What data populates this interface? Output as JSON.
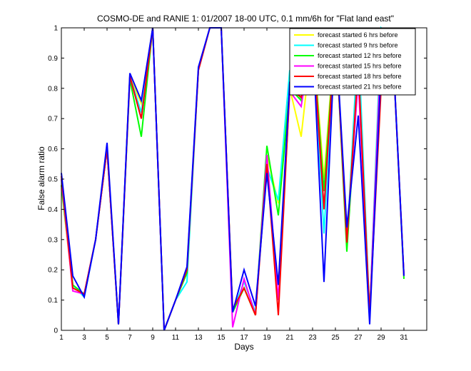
{
  "chart_data": {
    "type": "line",
    "title": "COSMO-DE and RANIE 1: 01/2007 18-00 UTC, 0.1 mm/6h for \"Flat land east\"",
    "xlabel": "Days",
    "ylabel": "False alarm ratio",
    "xlim": [
      1,
      33
    ],
    "ylim": [
      0,
      1
    ],
    "xticks": [
      1,
      3,
      5,
      7,
      9,
      11,
      13,
      15,
      17,
      19,
      21,
      23,
      25,
      27,
      29,
      31
    ],
    "yticks": [
      0,
      0.1,
      0.2,
      0.3,
      0.4,
      0.5,
      0.6,
      0.7,
      0.8,
      0.9,
      1
    ],
    "ytick_labels": [
      "0",
      "0.1",
      "0.2",
      "0.3",
      "0.4",
      "0.5",
      "0.6",
      "0.7",
      "0.8",
      "0.9",
      "1"
    ],
    "grid": false,
    "legend_position": "top-right",
    "x": [
      1,
      2,
      3,
      4,
      5,
      6,
      7,
      8,
      9,
      10,
      11,
      12,
      13,
      14,
      15,
      16,
      17,
      18,
      19,
      20,
      21,
      22,
      23,
      24,
      25,
      26,
      27,
      28,
      29,
      30,
      31
    ],
    "series": [
      {
        "name": "forecast started 6 hrs before",
        "color": "#ffff00",
        "values": [
          0.47,
          0.14,
          0.12,
          0.3,
          0.6,
          0.02,
          0.84,
          0.75,
          1.0,
          0.0,
          0.1,
          0.19,
          0.86,
          1.0,
          1.0,
          0.06,
          0.14,
          0.05,
          0.58,
          0.42,
          0.8,
          0.64,
          0.98,
          0.5,
          1.0,
          0.29,
          0.85,
          0.05,
          0.95,
          0.95,
          0.18
        ]
      },
      {
        "name": "forecast started 9 hrs before",
        "color": "#00ffff",
        "values": [
          0.48,
          0.15,
          0.11,
          0.3,
          0.6,
          0.02,
          0.84,
          0.72,
          1.0,
          0.0,
          0.1,
          0.16,
          0.86,
          1.0,
          1.0,
          0.06,
          0.16,
          0.06,
          0.54,
          0.43,
          0.86,
          0.76,
          0.98,
          0.32,
          1.0,
          0.28,
          0.97,
          0.05,
          1.0,
          0.96,
          0.18
        ]
      },
      {
        "name": "forecast started 12 hrs before",
        "color": "#00ff00",
        "values": [
          0.48,
          0.15,
          0.12,
          0.3,
          0.6,
          0.02,
          0.83,
          0.64,
          1.0,
          0.0,
          0.1,
          0.19,
          0.86,
          1.0,
          1.0,
          0.06,
          0.14,
          0.05,
          0.61,
          0.38,
          0.8,
          0.76,
          0.98,
          0.46,
          1.0,
          0.26,
          0.85,
          0.05,
          0.95,
          0.95,
          0.17
        ]
      },
      {
        "name": "forecast started 15 hrs before",
        "color": "#ff00ff",
        "values": [
          0.5,
          0.13,
          0.12,
          0.3,
          0.6,
          0.02,
          0.84,
          0.7,
          1.0,
          0.0,
          0.1,
          0.2,
          0.86,
          1.0,
          1.0,
          0.01,
          0.17,
          0.05,
          0.58,
          0.1,
          0.79,
          0.74,
          0.98,
          0.4,
          1.0,
          0.3,
          0.83,
          0.05,
          0.94,
          0.95,
          0.18
        ]
      },
      {
        "name": "forecast started 18 hrs before",
        "color": "#ff0000",
        "values": [
          0.51,
          0.14,
          0.12,
          0.3,
          0.6,
          0.02,
          0.84,
          0.7,
          1.0,
          0.0,
          0.1,
          0.2,
          0.86,
          1.0,
          1.0,
          0.07,
          0.14,
          0.05,
          0.55,
          0.05,
          0.8,
          0.77,
          0.98,
          0.4,
          1.0,
          0.29,
          0.88,
          0.05,
          0.8,
          0.95,
          0.18
        ]
      },
      {
        "name": "forecast started 21 hrs before",
        "color": "#0000ff",
        "values": [
          0.52,
          0.18,
          0.11,
          0.3,
          0.62,
          0.02,
          0.85,
          0.76,
          1.0,
          0.0,
          0.1,
          0.21,
          0.87,
          1.0,
          1.0,
          0.06,
          0.2,
          0.08,
          0.52,
          0.15,
          0.82,
          0.82,
          0.98,
          0.16,
          1.0,
          0.34,
          0.71,
          0.02,
          0.87,
          0.95,
          0.18
        ]
      }
    ]
  }
}
